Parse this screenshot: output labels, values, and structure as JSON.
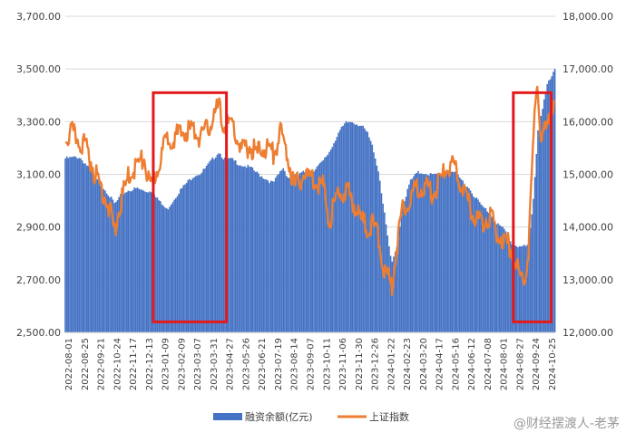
{
  "chart_data": {
    "type": "bar+line",
    "title": "",
    "left_axis": {
      "min": 2500,
      "max": 3700,
      "ticks": [
        "2,500.00",
        "2,700.00",
        "2,900.00",
        "3,100.00",
        "3,300.00",
        "3,500.00",
        "3,700.00"
      ],
      "tick_values": [
        2500,
        2700,
        2900,
        3100,
        3300,
        3500,
        3700
      ]
    },
    "right_axis": {
      "min": 12000,
      "max": 18000,
      "ticks": [
        "12,000.00",
        "13,000.00",
        "14,000.00",
        "15,000.00",
        "16,000.00",
        "17,000.00",
        "18,000.00"
      ],
      "tick_values": [
        12000,
        13000,
        14000,
        15000,
        16000,
        17000,
        18000
      ]
    },
    "x_start": "2022-08-01",
    "x_end": "2024-11-08",
    "x_tick_labels": [
      "2022-08-01",
      "2022-08-25",
      "2022-09-21",
      "2022-10-24",
      "2022-11-17",
      "2022-12-13",
      "2023-01-09",
      "2023-02-09",
      "2023-03-07",
      "2023-03-31",
      "2023-04-27",
      "2023-05-26",
      "2023-06-21",
      "2023-07-19",
      "2023-08-14",
      "2023-09-07",
      "2023-10-11",
      "2023-11-06",
      "2023-11-30",
      "2023-12-26",
      "2024-01-22",
      "2024-02-23",
      "2024-03-20",
      "2024-04-17",
      "2024-05-16",
      "2024-06-12",
      "2024-07-08",
      "2024-08-01",
      "2024-08-27",
      "2024-09-24",
      "2024-10-25"
    ],
    "series": [
      {
        "name": "融资余额(亿元)",
        "type": "bar",
        "axis": "right",
        "color": "#4472C4",
        "points": [
          [
            "2022-08-01",
            15320
          ],
          [
            "2022-08-25",
            15350
          ],
          [
            "2022-09-10",
            15150
          ],
          [
            "2022-09-21",
            14950
          ],
          [
            "2022-10-10",
            14700
          ],
          [
            "2022-10-24",
            14450
          ],
          [
            "2022-11-05",
            14650
          ],
          [
            "2022-11-17",
            14720
          ],
          [
            "2022-12-01",
            14750
          ],
          [
            "2022-12-13",
            14700
          ],
          [
            "2022-12-28",
            14700
          ],
          [
            "2023-01-09",
            14480
          ],
          [
            "2023-01-20",
            14350
          ],
          [
            "2023-02-09",
            14680
          ],
          [
            "2023-02-22",
            14850
          ],
          [
            "2023-03-07",
            15000
          ],
          [
            "2023-03-20",
            15050
          ],
          [
            "2023-03-31",
            15200
          ],
          [
            "2023-04-18",
            15450
          ],
          [
            "2023-04-27",
            15320
          ],
          [
            "2023-05-10",
            15300
          ],
          [
            "2023-05-26",
            15200
          ],
          [
            "2023-06-10",
            15150
          ],
          [
            "2023-06-21",
            15050
          ],
          [
            "2023-07-05",
            14950
          ],
          [
            "2023-07-19",
            14850
          ],
          [
            "2023-08-05",
            15150
          ],
          [
            "2023-08-14",
            14950
          ],
          [
            "2023-08-31",
            15000
          ],
          [
            "2023-09-07",
            15050
          ],
          [
            "2023-09-25",
            15100
          ],
          [
            "2023-10-11",
            15250
          ],
          [
            "2023-10-25",
            15500
          ],
          [
            "2023-11-06",
            15800
          ],
          [
            "2023-11-20",
            16000
          ],
          [
            "2023-11-30",
            16020
          ],
          [
            "2023-12-15",
            15950
          ],
          [
            "2023-12-26",
            15800
          ],
          [
            "2024-01-05",
            15500
          ],
          [
            "2024-01-15",
            15000
          ],
          [
            "2024-01-22",
            14400
          ],
          [
            "2024-02-05",
            13300
          ],
          [
            "2024-02-15",
            13700
          ],
          [
            "2024-02-23",
            14400
          ],
          [
            "2024-03-08",
            14900
          ],
          [
            "2024-03-20",
            15050
          ],
          [
            "2024-04-01",
            15050
          ],
          [
            "2024-04-17",
            15000
          ],
          [
            "2024-05-06",
            15050
          ],
          [
            "2024-05-16",
            15100
          ],
          [
            "2024-05-30",
            14950
          ],
          [
            "2024-06-12",
            14800
          ],
          [
            "2024-06-25",
            14600
          ],
          [
            "2024-07-08",
            14400
          ],
          [
            "2024-07-20",
            14300
          ],
          [
            "2024-08-01",
            14100
          ],
          [
            "2024-08-15",
            13950
          ],
          [
            "2024-08-27",
            13700
          ],
          [
            "2024-09-10",
            13650
          ],
          [
            "2024-09-20",
            13650
          ],
          [
            "2024-09-24",
            13700
          ],
          [
            "2024-10-01",
            14400
          ],
          [
            "2024-10-10",
            15900
          ],
          [
            "2024-10-18",
            16300
          ],
          [
            "2024-10-25",
            16700
          ],
          [
            "2024-11-08",
            17000
          ]
        ]
      },
      {
        "name": "上证指数",
        "type": "line",
        "axis": "left",
        "color": "#ED7D31",
        "points": [
          [
            "2022-08-01",
            3260
          ],
          [
            "2022-08-12",
            3280
          ],
          [
            "2022-08-25",
            3250
          ],
          [
            "2022-09-05",
            3230
          ],
          [
            "2022-09-21",
            3120
          ],
          [
            "2022-10-10",
            3030
          ],
          [
            "2022-10-24",
            2900
          ],
          [
            "2022-11-01",
            3000
          ],
          [
            "2022-11-17",
            3120
          ],
          [
            "2022-12-01",
            3160
          ],
          [
            "2022-12-13",
            3180
          ],
          [
            "2022-12-23",
            3060
          ],
          [
            "2023-01-09",
            3180
          ],
          [
            "2023-01-20",
            3260
          ],
          [
            "2023-02-09",
            3270
          ],
          [
            "2023-02-22",
            3290
          ],
          [
            "2023-03-07",
            3290
          ],
          [
            "2023-03-20",
            3260
          ],
          [
            "2023-03-31",
            3300
          ],
          [
            "2023-04-18",
            3380
          ],
          [
            "2023-04-27",
            3300
          ],
          [
            "2023-05-10",
            3320
          ],
          [
            "2023-05-26",
            3210
          ],
          [
            "2023-06-10",
            3230
          ],
          [
            "2023-06-21",
            3200
          ],
          [
            "2023-07-05",
            3230
          ],
          [
            "2023-07-19",
            3200
          ],
          [
            "2023-08-01",
            3280
          ],
          [
            "2023-08-14",
            3180
          ],
          [
            "2023-08-25",
            3070
          ],
          [
            "2023-09-07",
            3120
          ],
          [
            "2023-09-25",
            3110
          ],
          [
            "2023-10-11",
            3080
          ],
          [
            "2023-10-23",
            2950
          ],
          [
            "2023-11-06",
            3050
          ],
          [
            "2023-11-20",
            3060
          ],
          [
            "2023-11-30",
            3030
          ],
          [
            "2023-12-15",
            2950
          ],
          [
            "2023-12-26",
            2920
          ],
          [
            "2024-01-05",
            2930
          ],
          [
            "2024-01-15",
            2880
          ],
          [
            "2024-01-22",
            2760
          ],
          [
            "2024-02-05",
            2700
          ],
          [
            "2024-02-15",
            2870
          ],
          [
            "2024-02-23",
            3000
          ],
          [
            "2024-03-08",
            3030
          ],
          [
            "2024-03-20",
            3080
          ],
          [
            "2024-04-01",
            3070
          ],
          [
            "2024-04-17",
            3050
          ],
          [
            "2024-05-06",
            3140
          ],
          [
            "2024-05-16",
            3160
          ],
          [
            "2024-05-30",
            3100
          ],
          [
            "2024-06-12",
            3020
          ],
          [
            "2024-06-25",
            2960
          ],
          [
            "2024-07-08",
            2940
          ],
          [
            "2024-07-20",
            2970
          ],
          [
            "2024-08-01",
            2900
          ],
          [
            "2024-08-15",
            2870
          ],
          [
            "2024-08-27",
            2840
          ],
          [
            "2024-09-10",
            2730
          ],
          [
            "2024-09-20",
            2740
          ],
          [
            "2024-09-24",
            2860
          ],
          [
            "2024-10-01",
            3200
          ],
          [
            "2024-10-08",
            3490
          ],
          [
            "2024-10-15",
            3250
          ],
          [
            "2024-10-25",
            3300
          ],
          [
            "2024-11-08",
            3430
          ]
        ]
      }
    ],
    "highlight_boxes": [
      {
        "from": "2022-12-28",
        "to": "2023-05-01",
        "from_value_right": 12200,
        "to_value_right": 16550
      },
      {
        "from": "2024-08-29",
        "to": "2024-11-01",
        "from_value_right": 12200,
        "to_value_right": 16550
      }
    ],
    "highlight_color": "#E31A1C",
    "legend": {
      "position": "bottom",
      "items": [
        {
          "label": "融资余额(亿元)",
          "color": "#4472C4",
          "type": "bar"
        },
        {
          "label": "上证指数",
          "color": "#ED7D31",
          "type": "line"
        }
      ]
    },
    "gridlines": true,
    "watermark": "@财经摆渡人-老茅"
  }
}
